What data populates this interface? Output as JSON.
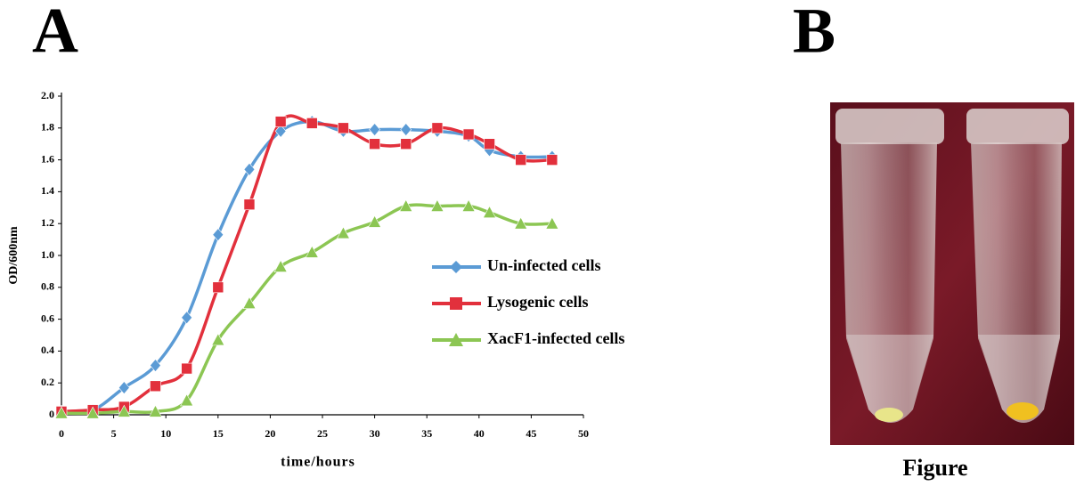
{
  "panel_labels": [
    "A",
    "B"
  ],
  "caption": "Figure",
  "chart_data": {
    "type": "line",
    "xlabel": "time/hours",
    "ylabel": "OD/600nm",
    "x": [
      0,
      3,
      6,
      9,
      12,
      15,
      18,
      21,
      24,
      27,
      30,
      33,
      36,
      39,
      41,
      44,
      47
    ],
    "series": [
      {
        "name": "Un-infected cells",
        "color": "#5b9bd5",
        "marker": "diamond",
        "values": [
          0.02,
          0.03,
          0.17,
          0.31,
          0.61,
          1.13,
          1.54,
          1.78,
          1.84,
          1.78,
          1.79,
          1.79,
          1.78,
          1.75,
          1.66,
          1.62,
          1.62
        ]
      },
      {
        "name": "Lysogenic cells",
        "color": "#e2303c",
        "marker": "square",
        "values": [
          0.02,
          0.03,
          0.05,
          0.18,
          0.29,
          0.8,
          1.32,
          1.84,
          1.83,
          1.8,
          1.7,
          1.7,
          1.8,
          1.76,
          1.7,
          1.6,
          1.6
        ]
      },
      {
        "name": "XacF1-infected cells",
        "color": "#8cc653",
        "marker": "triangle",
        "values": [
          0.01,
          0.01,
          0.02,
          0.02,
          0.09,
          0.47,
          0.7,
          0.93,
          1.02,
          1.14,
          1.21,
          1.31,
          1.31,
          1.31,
          1.27,
          1.2,
          1.2
        ]
      }
    ],
    "xlim": [
      0,
      50
    ],
    "xticks": [
      0,
      5,
      10,
      15,
      20,
      25,
      30,
      35,
      40,
      45,
      50
    ],
    "ylim": [
      0,
      2
    ],
    "yticks": [
      0,
      0.2,
      0.4,
      0.6,
      0.8,
      {
        "value": 1,
        "label": "1.0"
      },
      1.2,
      1.4,
      1.6,
      1.8,
      {
        "value": 2,
        "label": "2.0"
      }
    ],
    "legend": "right",
    "smooth": true
  }
}
